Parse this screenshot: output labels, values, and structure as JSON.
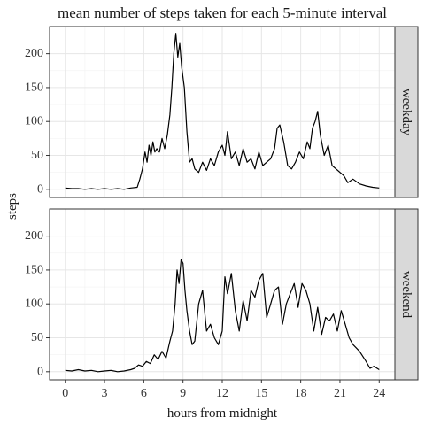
{
  "chart_data": {
    "type": "line",
    "title": "mean number of steps taken for each 5-minute interval",
    "xlabel": "hours from midnight",
    "ylabel": "steps",
    "xlim": [
      -1.2,
      25.2
    ],
    "ylim": [
      -12,
      240
    ],
    "x_ticks": [
      0,
      3,
      6,
      9,
      12,
      15,
      18,
      21,
      24
    ],
    "y_ticks": [
      0,
      50,
      100,
      150,
      200
    ],
    "grid": true,
    "facet_layout": "rows",
    "panels": [
      {
        "label": "weekday",
        "series": [
          {
            "x": [
              0,
              0.5,
              1,
              1.5,
              2,
              2.5,
              3,
              3.5,
              4,
              4.5,
              5,
              5.5,
              5.7,
              5.9,
              6.1,
              6.25,
              6.4,
              6.55,
              6.7,
              6.85,
              7.0,
              7.2,
              7.4,
              7.6,
              7.8,
              8.0,
              8.15,
              8.3,
              8.45,
              8.6,
              8.75,
              8.9,
              9.1,
              9.3,
              9.5,
              9.7,
              9.9,
              10.2,
              10.5,
              10.8,
              11.1,
              11.4,
              11.7,
              12.0,
              12.2,
              12.4,
              12.7,
              13.0,
              13.3,
              13.6,
              13.9,
              14.2,
              14.5,
              14.8,
              15.1,
              15.4,
              15.7,
              16.0,
              16.2,
              16.4,
              16.7,
              17.0,
              17.3,
              17.6,
              17.9,
              18.2,
              18.5,
              18.7,
              18.9,
              19.1,
              19.3,
              19.5,
              19.8,
              20.1,
              20.4,
              20.7,
              21.0,
              21.3,
              21.6,
              22.0,
              22.5,
              23.0,
              23.5,
              24.0
            ],
            "y": [
              2,
              1,
              1,
              0,
              1,
              0,
              1,
              0,
              1,
              0,
              2,
              3,
              15,
              30,
              55,
              40,
              65,
              50,
              70,
              55,
              60,
              55,
              75,
              60,
              80,
              110,
              150,
              200,
              230,
              195,
              215,
              180,
              150,
              85,
              40,
              45,
              30,
              25,
              40,
              28,
              45,
              35,
              55,
              65,
              50,
              85,
              45,
              55,
              35,
              60,
              40,
              45,
              30,
              55,
              35,
              40,
              45,
              60,
              90,
              95,
              70,
              35,
              30,
              40,
              55,
              45,
              70,
              60,
              90,
              100,
              115,
              80,
              50,
              65,
              35,
              30,
              25,
              20,
              10,
              15,
              8,
              5,
              3,
              2
            ]
          }
        ]
      },
      {
        "label": "weekend",
        "series": [
          {
            "x": [
              0,
              0.5,
              1,
              1.5,
              2,
              2.5,
              3,
              3.5,
              4,
              4.5,
              5,
              5.3,
              5.6,
              5.9,
              6.2,
              6.5,
              6.8,
              7.1,
              7.4,
              7.7,
              8.0,
              8.2,
              8.4,
              8.55,
              8.7,
              8.85,
              9.0,
              9.15,
              9.3,
              9.5,
              9.7,
              9.9,
              10.2,
              10.5,
              10.8,
              11.1,
              11.4,
              11.7,
              12.0,
              12.2,
              12.4,
              12.7,
              13.0,
              13.3,
              13.6,
              13.9,
              14.2,
              14.5,
              14.8,
              15.1,
              15.4,
              15.7,
              16.0,
              16.3,
              16.6,
              16.9,
              17.2,
              17.5,
              17.8,
              18.1,
              18.4,
              18.7,
              19.0,
              19.3,
              19.6,
              19.9,
              20.2,
              20.5,
              20.8,
              21.1,
              21.4,
              21.7,
              22.0,
              22.5,
              23.0,
              23.3,
              23.6,
              24.0
            ],
            "y": [
              2,
              1,
              3,
              1,
              2,
              0,
              1,
              2,
              0,
              1,
              3,
              5,
              10,
              8,
              15,
              12,
              25,
              18,
              30,
              20,
              45,
              60,
              100,
              150,
              130,
              165,
              160,
              120,
              90,
              60,
              40,
              45,
              100,
              120,
              60,
              70,
              50,
              40,
              60,
              140,
              115,
              145,
              90,
              60,
              105,
              75,
              120,
              110,
              135,
              145,
              80,
              100,
              120,
              125,
              70,
              100,
              115,
              130,
              95,
              130,
              120,
              100,
              60,
              95,
              55,
              80,
              75,
              85,
              60,
              90,
              70,
              50,
              40,
              30,
              15,
              5,
              8,
              3
            ]
          }
        ]
      }
    ]
  }
}
